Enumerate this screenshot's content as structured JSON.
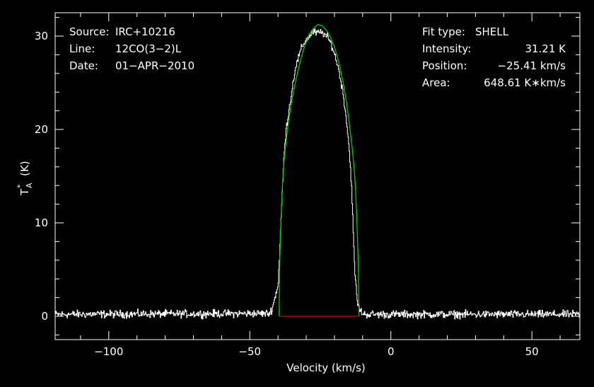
{
  "chart_data": {
    "type": "line",
    "xlabel": "Velocity (km/s)",
    "ylabel": "T*A (K)",
    "ylabel_parts": {
      "base": "T",
      "sup": "*",
      "sub": "A",
      "unit": "(K)"
    },
    "xlim": [
      -119.0,
      67.0
    ],
    "ylim": [
      -2.5,
      32.5
    ],
    "xticks": [
      -100,
      -50,
      0,
      50
    ],
    "xtick_labels": [
      "−100",
      "−50",
      "0",
      "50"
    ],
    "yticks": [
      0,
      10,
      20,
      30
    ],
    "ytick_labels": [
      "0",
      "10",
      "20",
      "30"
    ],
    "grid": false,
    "colors": {
      "background": "#000000",
      "data": "#ffffff",
      "fit": "#00cc00",
      "baseline": "#cc0000",
      "axes": "#ffffff"
    },
    "info_left": [
      {
        "key": "Source:",
        "value": "IRC+10216"
      },
      {
        "key": "Line:",
        "value": "12CO(3−2)L"
      },
      {
        "key": "Date:",
        "value": "01−APR−2010"
      }
    ],
    "info_right": [
      {
        "key": "Fit type:",
        "value": "SHELL"
      },
      {
        "key": "Intensity:",
        "value": "31.21 K"
      },
      {
        "key": "Position:",
        "value": "−25.41 km/s"
      },
      {
        "key": "Area:",
        "value": "648.61 K∗km/s"
      }
    ],
    "series": [
      {
        "role": "observed spectrum",
        "x": [
          -119.0,
          -43.0,
          -42.0,
          -41.0,
          -40.0,
          -39.0,
          -38.0,
          -37.0,
          -36.0,
          -35.0,
          -34.0,
          -33.0,
          -32.0,
          -31.0,
          -30.0,
          -29.0,
          -28.0,
          -27.0,
          -26.0,
          -25.0,
          -24.0,
          -23.0,
          -22.0,
          -21.0,
          -20.0,
          -19.0,
          -18.0,
          -17.0,
          -16.0,
          -15.0,
          -14.0,
          -13.0,
          -12.0,
          -11.0,
          -10.0,
          -9.0,
          67.0
        ],
        "y": [
          0.2,
          0.3,
          1.0,
          2.2,
          3.5,
          10.5,
          17.0,
          20.5,
          22.5,
          24.5,
          26.5,
          27.5,
          28.5,
          29.2,
          29.6,
          30.0,
          30.4,
          30.4,
          30.3,
          30.4,
          30.3,
          30.0,
          29.6,
          29.0,
          28.0,
          27.0,
          25.5,
          23.8,
          21.5,
          18.5,
          14.0,
          5.5,
          1.5,
          0.6,
          0.3,
          0.2,
          0.2
        ],
        "noise_rms": 0.35,
        "points_per_kms": 5
      },
      {
        "role": "shell fit",
        "x": [
          -39.6,
          -39.2,
          -38.0,
          -36.0,
          -34.0,
          -32.0,
          -30.0,
          -28.0,
          -26.0,
          -25.41,
          -24.0,
          -22.0,
          -20.0,
          -18.0,
          -16.0,
          -14.0,
          -12.6,
          -11.6,
          -11.3
        ],
        "y": [
          0.0,
          8.0,
          16.0,
          21.4,
          24.8,
          27.4,
          29.4,
          30.6,
          31.2,
          31.21,
          31.0,
          30.2,
          28.8,
          26.6,
          23.4,
          18.8,
          14.0,
          6.0,
          0.0
        ]
      },
      {
        "role": "fit baseline",
        "x": [
          -39.6,
          -11.3
        ],
        "y": [
          0.0,
          0.0
        ]
      }
    ]
  }
}
